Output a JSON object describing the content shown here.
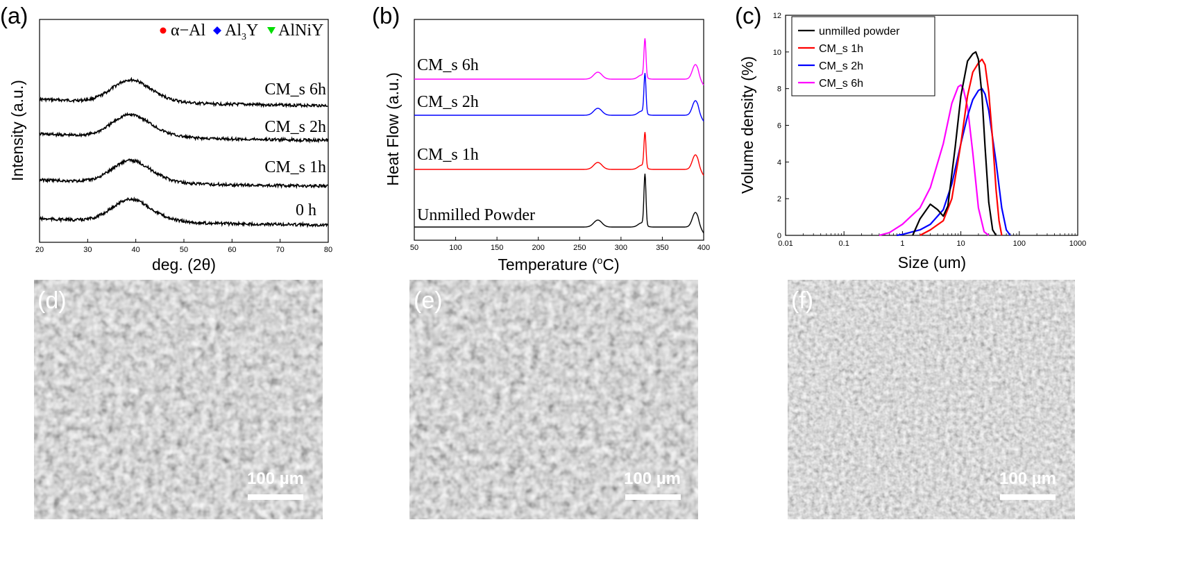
{
  "panel_labels": {
    "a": "(a)",
    "b": "(b)",
    "c": "(c)",
    "d": "(d)",
    "e": "(e)",
    "f": "(f)"
  },
  "sem_scale_label": "100 µm",
  "chart_data": [
    {
      "type": "line",
      "panel": "a",
      "xlabel": "deg. (2θ)",
      "ylabel": "Intensity (a.u.)",
      "xlim": [
        20,
        80
      ],
      "xticks": [
        20,
        30,
        40,
        50,
        60,
        70,
        80
      ],
      "y_ticks_shown": false,
      "legend": [
        {
          "marker": "circle",
          "color": "#ff0000",
          "label": "α−Al"
        },
        {
          "marker": "diamond",
          "color": "#0000ff",
          "label": "Al",
          "sub": "3",
          "label_after": "Y"
        },
        {
          "marker": "triangle-down",
          "color": "#00dd00",
          "label": "AlNiY"
        }
      ],
      "series": [
        {
          "name": "CM_s 6h",
          "color": "#000000",
          "offset": 3,
          "peak": 38.5
        },
        {
          "name": "CM_s 2h",
          "color": "#000000",
          "offset": 2,
          "peak": 38.5
        },
        {
          "name": "CM_s 1h",
          "color": "#000000",
          "offset": 1,
          "peak": 38.5
        },
        {
          "name": "0 h",
          "color": "#000000",
          "offset": 0,
          "peak": 38.5
        }
      ]
    },
    {
      "type": "line",
      "panel": "b",
      "xlabel": "Temperature (",
      "xlabel_sup": "o",
      "xlabel_end": "C)",
      "ylabel": "Heat Flow (a.u.)",
      "xlim": [
        50,
        400
      ],
      "xticks": [
        50,
        100,
        150,
        200,
        250,
        300,
        350,
        400
      ],
      "y_ticks_shown": false,
      "peaks": [
        272,
        329,
        390
      ],
      "series": [
        {
          "name": "CM_s 6h",
          "color": "#ff00ff",
          "offset": 3
        },
        {
          "name": "CM_s 2h",
          "color": "#0000ff",
          "offset": 2
        },
        {
          "name": "CM_s 1h",
          "color": "#ff0000",
          "offset": 1
        },
        {
          "name": "Unmilled Powder",
          "color": "#000000",
          "offset": 0
        }
      ]
    },
    {
      "type": "line",
      "panel": "c",
      "xlabel": "Size (um)",
      "ylabel": "Volume density (%)",
      "xscale": "log",
      "xlim": [
        0.01,
        1000
      ],
      "ylim": [
        0,
        12
      ],
      "xticks": [
        0.01,
        0.1,
        1,
        10,
        100,
        1000
      ],
      "xtick_labels": [
        "0.01",
        "0.1",
        "1",
        "10",
        "100",
        "1000"
      ],
      "yticks": [
        0,
        2,
        4,
        6,
        8,
        10,
        12
      ],
      "legend_position": "top-left",
      "series": [
        {
          "name": "unmilled powder",
          "color": "#000000",
          "x": [
            1.5,
            2,
            3,
            4,
            5,
            6,
            8,
            10,
            13,
            16,
            18,
            20,
            23,
            26,
            30,
            35,
            40
          ],
          "y": [
            0,
            0.9,
            1.7,
            1.4,
            1.05,
            1.6,
            4.8,
            7.6,
            9.5,
            9.9,
            10.0,
            9.6,
            7.6,
            4.8,
            1.8,
            0.3,
            0
          ]
        },
        {
          "name": "CM_s 1h",
          "color": "#ff0000",
          "x": [
            2,
            3,
            5,
            7,
            10,
            13,
            16,
            20,
            23,
            26,
            30,
            35,
            40,
            45,
            50
          ],
          "y": [
            0,
            0.3,
            0.8,
            2.0,
            5.0,
            7.6,
            8.9,
            9.4,
            9.6,
            9.3,
            7.8,
            5.2,
            2.5,
            0.8,
            0
          ]
        },
        {
          "name": "CM_s 2h",
          "color": "#0000ff",
          "x": [
            0.8,
            1,
            2,
            3,
            5,
            7,
            10,
            13,
            16,
            20,
            23,
            26,
            30,
            40,
            50,
            60,
            70
          ],
          "y": [
            0,
            0.05,
            0.3,
            0.6,
            1.4,
            2.8,
            5.0,
            6.5,
            7.4,
            7.9,
            8.0,
            7.7,
            6.8,
            4.0,
            1.5,
            0.3,
            0
          ]
        },
        {
          "name": "CM_s 6h",
          "color": "#ff00ff",
          "x": [
            0.4,
            0.6,
            1,
            2,
            3,
            5,
            7,
            9,
            10,
            11,
            13,
            16,
            20,
            25,
            30
          ],
          "y": [
            0,
            0.15,
            0.6,
            1.5,
            2.6,
            5.0,
            7.2,
            8.1,
            8.2,
            8.0,
            7.0,
            4.5,
            1.5,
            0.2,
            0
          ]
        }
      ]
    }
  ]
}
